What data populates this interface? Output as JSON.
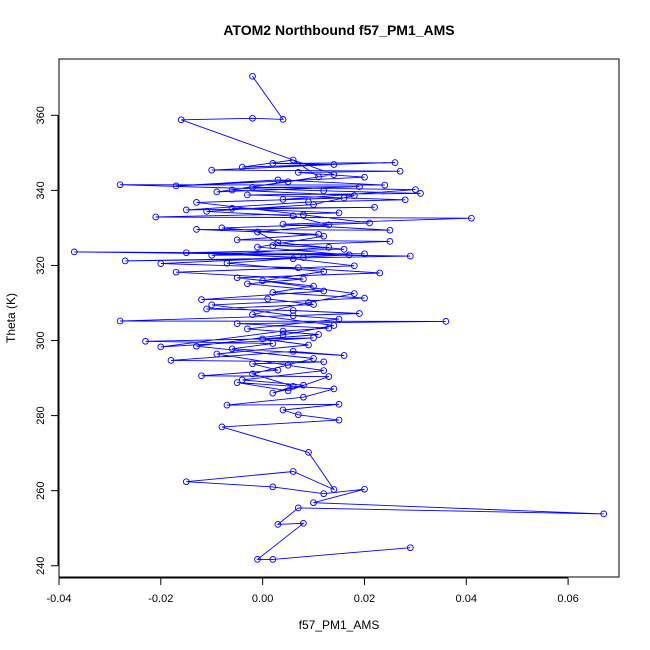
{
  "chart_data": {
    "type": "line",
    "title": "ATOM2 Northbound f57_PM1_AMS",
    "xlabel": "f57_PM1_AMS",
    "ylabel": "Theta (K)",
    "xlim": [
      -0.04,
      0.07
    ],
    "ylim": [
      237,
      375
    ],
    "x_ticks": [
      -0.04,
      -0.02,
      0.0,
      0.02,
      0.04,
      0.06
    ],
    "x_tick_labels": [
      "-0.04",
      "-0.02",
      "0.00",
      "0.02",
      "0.04",
      "0.06"
    ],
    "y_ticks": [
      240,
      260,
      280,
      300,
      320,
      340,
      360
    ],
    "y_tick_labels": [
      "240",
      "260",
      "280",
      "300",
      "320",
      "340",
      "360"
    ],
    "grid": false,
    "colors": {
      "series": "#0000ff",
      "axis": "#000000"
    },
    "markers": "open-circle",
    "series": [
      {
        "points": [
          [
            0.029,
            244.8
          ],
          [
            0.002,
            241.7
          ],
          [
            -0.001,
            241.7
          ],
          [
            0.008,
            251.3
          ],
          [
            0.003,
            251.0
          ],
          [
            0.007,
            255.4
          ],
          [
            0.067,
            253.8
          ],
          [
            0.01,
            256.8
          ],
          [
            0.02,
            260.4
          ],
          [
            0.012,
            259.2
          ],
          [
            0.002,
            261.0
          ],
          [
            -0.015,
            262.4
          ],
          [
            0.006,
            265.1
          ],
          [
            0.014,
            260.3
          ],
          [
            0.009,
            270.2
          ],
          [
            -0.008,
            277.0
          ],
          [
            0.015,
            278.8
          ],
          [
            0.007,
            280.2
          ],
          [
            0.004,
            281.5
          ],
          [
            0.015,
            283.0
          ],
          [
            -0.007,
            282.8
          ],
          [
            0.008,
            284.9
          ],
          [
            0.014,
            287.1
          ],
          [
            -0.005,
            288.8
          ],
          [
            0.005,
            286.6
          ],
          [
            0.013,
            290.4
          ],
          [
            -0.012,
            290.6
          ],
          [
            0.003,
            292.1
          ],
          [
            -0.002,
            293.8
          ],
          [
            0.012,
            294.3
          ],
          [
            -0.018,
            294.7
          ],
          [
            0.006,
            297.1
          ],
          [
            0.016,
            296.0
          ],
          [
            -0.006,
            297.8
          ],
          [
            0.002,
            299.2
          ],
          [
            -0.023,
            299.8
          ],
          [
            0.01,
            300.7
          ],
          [
            -0.02,
            298.3
          ],
          [
            0.004,
            302.5
          ],
          [
            0.013,
            303.3
          ],
          [
            -0.005,
            304.5
          ],
          [
            0.036,
            305.1
          ],
          [
            -0.028,
            305.2
          ],
          [
            0.019,
            307.2
          ],
          [
            0.006,
            308.0
          ],
          [
            -0.011,
            308.4
          ],
          [
            0.01,
            309.6
          ],
          [
            0.001,
            311.1
          ],
          [
            -0.012,
            310.9
          ],
          [
            0.012,
            313.2
          ],
          [
            -0.003,
            315.1
          ],
          [
            0.008,
            316.4
          ],
          [
            -0.017,
            318.2
          ],
          [
            0.018,
            319.9
          ],
          [
            0.006,
            321.8
          ],
          [
            -0.027,
            321.2
          ],
          [
            0.029,
            322.5
          ],
          [
            -0.037,
            323.6
          ],
          [
            0.02,
            323.1
          ],
          [
            -0.01,
            322.7
          ],
          [
            0.013,
            324.8
          ],
          [
            0.002,
            325.3
          ],
          [
            0.025,
            326.4
          ],
          [
            -0.005,
            326.8
          ],
          [
            0.011,
            328.3
          ],
          [
            -0.013,
            329.6
          ],
          [
            0.025,
            329.4
          ],
          [
            0.004,
            331.0
          ],
          [
            0.041,
            332.6
          ],
          [
            -0.021,
            332.9
          ],
          [
            0.015,
            334.0
          ],
          [
            -0.006,
            335.2
          ],
          [
            0.022,
            335.5
          ],
          [
            -0.015,
            334.8
          ],
          [
            0.009,
            336.9
          ],
          [
            0.028,
            337.5
          ],
          [
            -0.003,
            338.8
          ],
          [
            0.031,
            339.2
          ],
          [
            0.012,
            339.9
          ],
          [
            -0.028,
            341.5
          ],
          [
            0.024,
            341.4
          ],
          [
            0.003,
            342.8
          ],
          [
            -0.017,
            341.2
          ],
          [
            0.02,
            343.5
          ],
          [
            0.007,
            344.8
          ],
          [
            0.027,
            345.1
          ],
          [
            -0.01,
            345.4
          ],
          [
            0.014,
            346.9
          ],
          [
            0.002,
            347.2
          ],
          [
            0.026,
            347.4
          ],
          [
            -0.004,
            346.2
          ],
          [
            0.006,
            348.1
          ],
          [
            0.011,
            343.6
          ],
          [
            -0.009,
            339.6
          ],
          [
            0.019,
            341.0
          ],
          [
            -0.002,
            340.8
          ],
          [
            0.03,
            340.2
          ],
          [
            0.004,
            337.6
          ],
          [
            0.016,
            338.0
          ],
          [
            -0.013,
            336.8
          ],
          [
            0.008,
            333.5
          ],
          [
            0.021,
            331.3
          ],
          [
            -0.008,
            330.0
          ],
          [
            0.012,
            327.8
          ],
          [
            -0.001,
            324.9
          ],
          [
            0.017,
            322.8
          ],
          [
            -0.02,
            320.5
          ],
          [
            0.007,
            319.4
          ],
          [
            0.023,
            318.0
          ],
          [
            -0.005,
            316.7
          ],
          [
            0.01,
            314.5
          ],
          [
            0.002,
            312.8
          ],
          [
            0.02,
            311.3
          ],
          [
            -0.01,
            309.5
          ],
          [
            0.006,
            306.6
          ],
          [
            0.015,
            305.7
          ],
          [
            -0.003,
            303.1
          ],
          [
            0.011,
            301.6
          ],
          [
            0.0,
            300.4
          ],
          [
            0.009,
            298.8
          ],
          [
            -0.009,
            296.4
          ],
          [
            0.005,
            293.4
          ],
          [
            0.012,
            292.0
          ],
          [
            -0.004,
            289.5
          ],
          [
            0.008,
            288.1
          ],
          [
            0.002,
            286.0
          ],
          [
            0.006,
            287.8
          ],
          [
            -0.002,
            291.1
          ],
          [
            0.01,
            295.2
          ],
          [
            -0.013,
            298.5
          ],
          [
            0.004,
            301.5
          ],
          [
            0.014,
            304.0
          ],
          [
            -0.002,
            306.9
          ],
          [
            0.009,
            310.1
          ],
          [
            0.018,
            312.5
          ],
          [
            0.0,
            315.9
          ],
          [
            0.012,
            318.4
          ],
          [
            -0.007,
            320.6
          ],
          [
            0.008,
            322.1
          ],
          [
            -0.015,
            323.4
          ],
          [
            0.016,
            324.3
          ],
          [
            0.003,
            326.1
          ],
          [
            -0.001,
            328.9
          ],
          [
            0.013,
            330.8
          ],
          [
            0.006,
            333.2
          ],
          [
            -0.011,
            334.4
          ],
          [
            0.01,
            336.2
          ],
          [
            0.018,
            338.6
          ],
          [
            -0.006,
            340.1
          ],
          [
            0.005,
            342.3
          ],
          [
            0.014,
            344.2
          ],
          [
            -0.016,
            358.8
          ],
          [
            -0.002,
            359.2
          ],
          [
            0.004,
            358.9
          ],
          [
            -0.002,
            370.4
          ]
        ]
      }
    ]
  }
}
